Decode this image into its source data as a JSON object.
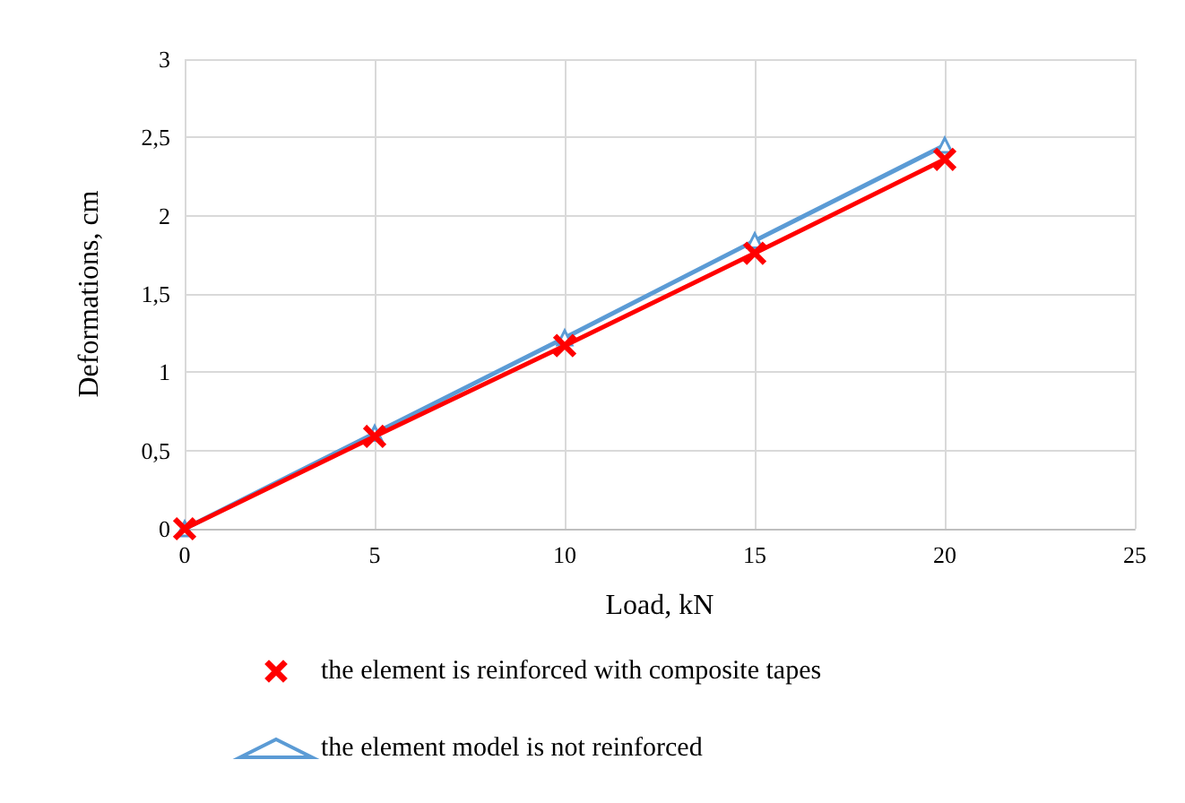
{
  "chart_data": {
    "type": "line",
    "xlabel": "Load, kN",
    "ylabel": "Deformations, cm",
    "x": [
      0,
      5,
      10,
      15,
      20
    ],
    "series": [
      {
        "name": "the element is reinforced with composite tapes",
        "color": "#ff0000",
        "marker": "cross",
        "values": [
          0,
          0.59,
          1.17,
          1.76,
          2.36
        ]
      },
      {
        "name": "the element model is not reinforced",
        "color": "#5b9bd5",
        "marker": "triangle",
        "values": [
          0,
          0.61,
          1.22,
          1.84,
          2.45
        ]
      }
    ],
    "xlim": [
      0,
      25
    ],
    "xticks": [
      0,
      5,
      10,
      15,
      20,
      25
    ],
    "ylim": [
      0,
      3
    ],
    "yticks": [
      0,
      {
        "value": 0.5,
        "label": "0,5"
      },
      1,
      {
        "value": 1.5,
        "label": "1,5"
      },
      2,
      {
        "value": 2.5,
        "label": "2,5"
      },
      3
    ],
    "grid": true,
    "legend": "bottom",
    "line_style": "solid"
  }
}
